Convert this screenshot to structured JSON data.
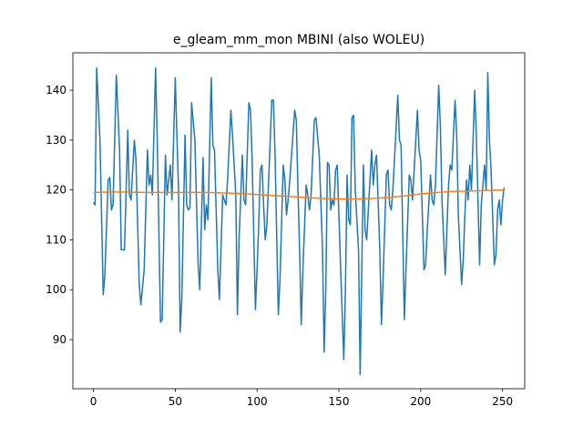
{
  "chart_data": {
    "type": "line",
    "title": "e_gleam_mm_mon MBINI (also WOLEU)",
    "xlim": [
      -12.55,
      263.55
    ],
    "ylim": [
      80.15,
      147.5
    ],
    "xticks": [
      0,
      50,
      100,
      150,
      200,
      250
    ],
    "yticks": [
      90,
      100,
      110,
      120,
      130,
      140
    ],
    "series": [
      {
        "color": "#1f77b4",
        "x": [
          0,
          1,
          2,
          4,
          6,
          7,
          9,
          10,
          11,
          12,
          14,
          16,
          17,
          19,
          21,
          22,
          23,
          25,
          26,
          28,
          29,
          31,
          33,
          34,
          35,
          36,
          38,
          39,
          41,
          42,
          44,
          45,
          47,
          48,
          50,
          52,
          53,
          54,
          56,
          57,
          58,
          59,
          60,
          62,
          64,
          65,
          67,
          68,
          69,
          70,
          72,
          73,
          74,
          76,
          77,
          79,
          80,
          81,
          82,
          84,
          85,
          87,
          88,
          89,
          91,
          92,
          93,
          95,
          96,
          97,
          99,
          100,
          101,
          102,
          103,
          104,
          105,
          106,
          109,
          110,
          111,
          113,
          114,
          116,
          117,
          118,
          119,
          120,
          123,
          124,
          125,
          126,
          127,
          128,
          130,
          131,
          132,
          133,
          135,
          136,
          138,
          140,
          141,
          142,
          143,
          144,
          145,
          146,
          147,
          148,
          149,
          151,
          153,
          154,
          155,
          156,
          157,
          158,
          159,
          160,
          162,
          163,
          164,
          165,
          166,
          167,
          170,
          171,
          172,
          173,
          175,
          176,
          177,
          179,
          180,
          181,
          182,
          183,
          186,
          187,
          188,
          190,
          191,
          193,
          194,
          195,
          196,
          198,
          199,
          200,
          202,
          203,
          204,
          206,
          207,
          208,
          209,
          211,
          212,
          213,
          215,
          217,
          218,
          219,
          221,
          222,
          223,
          225,
          226,
          227,
          228,
          229,
          230,
          231,
          233,
          234,
          236,
          237,
          238,
          239,
          240,
          241,
          242,
          243,
          245,
          246,
          247,
          248,
          249,
          250,
          251
        ],
        "values": [
          117.5,
          117,
          144.5,
          130,
          99,
          103,
          122,
          122.5,
          116,
          117,
          143,
          128,
          108,
          108,
          132,
          119,
          118,
          130,
          126,
          101,
          97,
          104,
          128,
          121,
          123,
          119,
          144.5,
          130,
          93.5,
          94,
          127,
          119,
          125,
          118,
          142.5,
          120,
          91.5,
          98,
          131,
          117,
          116,
          116.5,
          137.5,
          130,
          105,
          100,
          126.5,
          112,
          117,
          114,
          142.5,
          129,
          128,
          104,
          98,
          119,
          118,
          117,
          122,
          136,
          131,
          119,
          95,
          110,
          127,
          118,
          117,
          137.5,
          136,
          126,
          96,
          104,
          113,
          124,
          125,
          117,
          110,
          113,
          138,
          138,
          127,
          95,
          102,
          125,
          122,
          115,
          118,
          122,
          136,
          134,
          120,
          108,
          93,
          104,
          121,
          119,
          116,
          119,
          134,
          134.5,
          127,
          108,
          87.5,
          100,
          125.5,
          125,
          116,
          118,
          117,
          124,
          125,
          105,
          86,
          100,
          123,
          114,
          113,
          134.5,
          135,
          120,
          108,
          83,
          104,
          125,
          112,
          110,
          128,
          121,
          125,
          127,
          108,
          93,
          102,
          123,
          124,
          117,
          116,
          120,
          139,
          130,
          129,
          94,
          104,
          123,
          122,
          118,
          124,
          136,
          128,
          126,
          104,
          105,
          112,
          123,
          118,
          117,
          121,
          141,
          133,
          118,
          103,
          121,
          125,
          124,
          138,
          131,
          115,
          101,
          106,
          115,
          122,
          118,
          125,
          120,
          140,
          131,
          105,
          117,
          121,
          125,
          120,
          143.5,
          130,
          124,
          105,
          107,
          116,
          118,
          113,
          118,
          120.5
        ]
      },
      {
        "color": "#ff7f0e",
        "x": [
          0,
          10,
          20,
          30,
          40,
          50,
          60,
          70,
          80,
          90,
          100,
          110,
          120,
          130,
          140,
          150,
          160,
          170,
          180,
          190,
          200,
          210,
          220,
          230,
          240,
          251
        ],
        "values": [
          119.5,
          119.6,
          119.6,
          119.5,
          119.5,
          119.5,
          119.5,
          119.5,
          119.4,
          119.3,
          119.1,
          118.9,
          118.7,
          118.5,
          118.3,
          118.2,
          118.2,
          118.3,
          118.5,
          118.8,
          119.2,
          119.5,
          119.7,
          119.8,
          119.9,
          120
        ]
      }
    ]
  }
}
